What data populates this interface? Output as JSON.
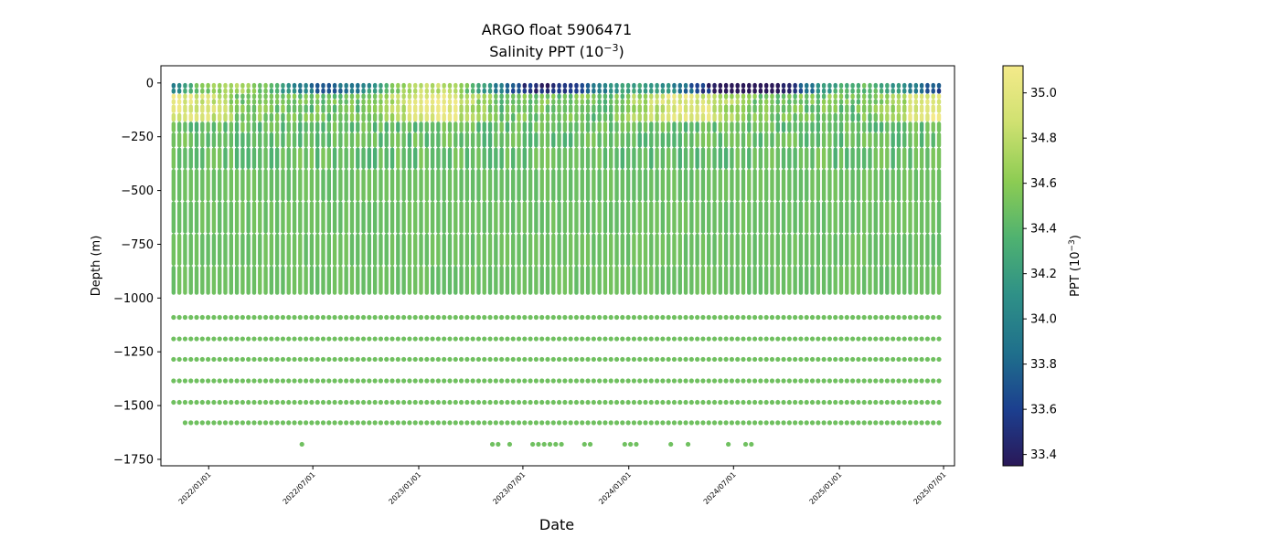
{
  "chart_data": {
    "type": "scatter",
    "title": "ARGO float 5906471",
    "subtitle_prefix": "Salinity PPT (10",
    "subtitle_exp": "−3",
    "subtitle_suffix": ")",
    "xlabel": "Date",
    "ylabel": "Depth (m)",
    "x_range": [
      "2021-10-10",
      "2025-07-20"
    ],
    "ylim": [
      -1780,
      80
    ],
    "x_ticks": [
      "2022/01/01",
      "2022/07/01",
      "2023/01/01",
      "2023/07/01",
      "2024/01/01",
      "2024/07/01",
      "2025/01/01",
      "2025/07/01"
    ],
    "x_tick_dates": [
      "2022-01-01",
      "2022-07-01",
      "2023-01-01",
      "2023-07-01",
      "2024-01-01",
      "2024-07-01",
      "2025-01-01",
      "2025-07-01"
    ],
    "y_ticks": [
      0,
      -250,
      -500,
      -750,
      -1000,
      -1250,
      -1500,
      -1750
    ],
    "y_tick_labels": [
      "0",
      "−250",
      "−500",
      "−750",
      "−1000",
      "−1250",
      "−1500",
      "−1750"
    ],
    "profile_start": "2021-11-01",
    "profile_end": "2025-06-28",
    "profile_interval_days": 10,
    "deep_levels": [
      -1090,
      -1190,
      -1285,
      -1385,
      -1485
    ],
    "level_1580_start": "2021-11-21",
    "level_1680_dates": [
      "2022-06-12",
      "2023-05-09",
      "2023-05-19",
      "2023-06-08",
      "2023-07-18",
      "2023-07-28",
      "2023-08-07",
      "2023-08-17",
      "2023-08-27",
      "2023-09-06",
      "2023-10-16",
      "2023-10-26",
      "2023-12-25",
      "2024-01-04",
      "2024-01-14",
      "2024-03-14",
      "2024-04-13",
      "2024-06-22",
      "2024-07-22",
      "2024-08-01"
    ],
    "deep_salinity": 34.5,
    "colorbar": {
      "label_prefix": "PPT (10",
      "label_exp": "−3",
      "label_suffix": ")",
      "range": [
        33.35,
        35.12
      ],
      "ticks": [
        33.4,
        33.6,
        33.8,
        34.0,
        34.2,
        34.4,
        34.6,
        34.8,
        35.0
      ],
      "tick_labels": [
        "33.4",
        "33.6",
        "33.8",
        "34.0",
        "34.2",
        "34.4",
        "34.6",
        "34.8",
        "35.0"
      ],
      "colormap": [
        "#2a1858",
        "#1c3f8f",
        "#1f6f8c",
        "#2f9187",
        "#4fb270",
        "#8ccc53",
        "#d0e171",
        "#f4ea8a"
      ]
    }
  }
}
